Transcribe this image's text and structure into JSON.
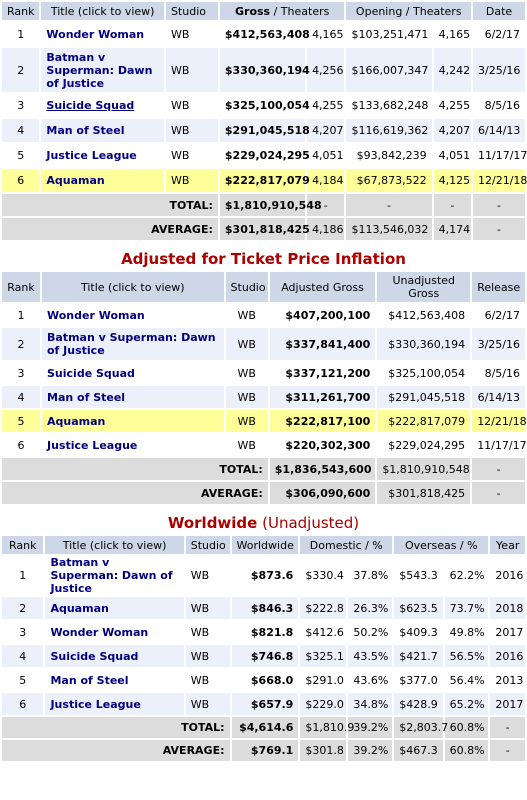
{
  "table1": {
    "headers": {
      "rank": "Rank",
      "title": "Title (click to view)",
      "studio": "Studio",
      "gross_a": "Gross",
      "gross_b": " / Theaters",
      "opening_a": "Opening",
      "opening_b": " / Theaters",
      "date": "Date"
    },
    "rows": [
      {
        "rank": "1",
        "title": "Wonder Woman",
        "studio": "WB",
        "gross": "$412,563,408",
        "theaters": "4,165",
        "opening": "$103,251,471",
        "op_theaters": "4,165",
        "date": "6/2/17"
      },
      {
        "rank": "2",
        "title": "Batman v Superman: Dawn of Justice",
        "studio": "WB",
        "gross": "$330,360,194",
        "theaters": "4,256",
        "opening": "$166,007,347",
        "op_theaters": "4,242",
        "date": "3/25/16"
      },
      {
        "rank": "3",
        "title": "Suicide Squad",
        "studio": "WB",
        "gross": "$325,100,054",
        "theaters": "4,255",
        "opening": "$133,682,248",
        "op_theaters": "4,255",
        "date": "8/5/16"
      },
      {
        "rank": "4",
        "title": "Man of Steel",
        "studio": "WB",
        "gross": "$291,045,518",
        "theaters": "4,207",
        "opening": "$116,619,362",
        "op_theaters": "4,207",
        "date": "6/14/13"
      },
      {
        "rank": "5",
        "title": "Justice League",
        "studio": "WB",
        "gross": "$229,024,295",
        "theaters": "4,051",
        "opening": "$93,842,239",
        "op_theaters": "4,051",
        "date": "11/17/17"
      },
      {
        "rank": "6",
        "title": "Aquaman",
        "studio": "WB",
        "gross": "$222,817,079",
        "theaters": "4,184",
        "opening": "$67,873,522",
        "op_theaters": "4,125",
        "date": "12/21/18"
      }
    ],
    "total": {
      "label": "TOTAL:",
      "gross": "$1,810,910,548",
      "theaters": "-",
      "opening": "-",
      "op_theaters": "-",
      "date": "-"
    },
    "average": {
      "label": "AVERAGE:",
      "gross": "$301,818,425",
      "theaters": "4,186",
      "opening": "$113,546,032",
      "op_theaters": "4,174",
      "date": "-"
    }
  },
  "table2": {
    "title": "Adjusted for Ticket Price Inflation",
    "headers": {
      "rank": "Rank",
      "title": "Title (click to view)",
      "studio": "Studio",
      "adjusted": "Adjusted Gross",
      "unadjusted": "Unadjusted Gross",
      "release": "Release"
    },
    "rows": [
      {
        "rank": "1",
        "title": "Wonder Woman",
        "studio": "WB",
        "adjusted": "$407,200,100",
        "unadjusted": "$412,563,408",
        "release": "6/2/17"
      },
      {
        "rank": "2",
        "title": "Batman v Superman: Dawn of Justice",
        "studio": "WB",
        "adjusted": "$337,841,400",
        "unadjusted": "$330,360,194",
        "release": "3/25/16"
      },
      {
        "rank": "3",
        "title": "Suicide Squad",
        "studio": "WB",
        "adjusted": "$337,121,200",
        "unadjusted": "$325,100,054",
        "release": "8/5/16"
      },
      {
        "rank": "4",
        "title": "Man of Steel",
        "studio": "WB",
        "adjusted": "$311,261,700",
        "unadjusted": "$291,045,518",
        "release": "6/14/13"
      },
      {
        "rank": "5",
        "title": "Aquaman",
        "studio": "WB",
        "adjusted": "$222,817,100",
        "unadjusted": "$222,817,079",
        "release": "12/21/18"
      },
      {
        "rank": "6",
        "title": "Justice League",
        "studio": "WB",
        "adjusted": "$220,302,300",
        "unadjusted": "$229,024,295",
        "release": "11/17/17"
      }
    ],
    "total": {
      "label": "TOTAL:",
      "adjusted": "$1,836,543,600",
      "unadjusted": "$1,810,910,548",
      "release": "-"
    },
    "average": {
      "label": "AVERAGE:",
      "adjusted": "$306,090,600",
      "unadjusted": "$301,818,425",
      "release": "-"
    }
  },
  "table3": {
    "title": "Worldwide",
    "subtitle": " (Unadjusted)",
    "headers": {
      "rank": "Rank",
      "title": "Title (click to view)",
      "studio": "Studio",
      "worldwide": "Worldwide",
      "domestic": "Domestic / %",
      "overseas": "Overseas / %",
      "year": "Year"
    },
    "rows": [
      {
        "rank": "1",
        "title": "Batman v Superman: Dawn of Justice",
        "studio": "WB",
        "worldwide": "$873.6",
        "domestic": "$330.4",
        "dom_pct": "37.8%",
        "overseas": "$543.3",
        "ovs_pct": "62.2%",
        "year": "2016"
      },
      {
        "rank": "2",
        "title": "Aquaman",
        "studio": "WB",
        "worldwide": "$846.3",
        "domestic": "$222.8",
        "dom_pct": "26.3%",
        "overseas": "$623.5",
        "ovs_pct": "73.7%",
        "year": "2018"
      },
      {
        "rank": "3",
        "title": "Wonder Woman",
        "studio": "WB",
        "worldwide": "$821.8",
        "domestic": "$412.6",
        "dom_pct": "50.2%",
        "overseas": "$409.3",
        "ovs_pct": "49.8%",
        "year": "2017"
      },
      {
        "rank": "4",
        "title": "Suicide Squad",
        "studio": "WB",
        "worldwide": "$746.8",
        "domestic": "$325.1",
        "dom_pct": "43.5%",
        "overseas": "$421.7",
        "ovs_pct": "56.5%",
        "year": "2016"
      },
      {
        "rank": "5",
        "title": "Man of Steel",
        "studio": "WB",
        "worldwide": "$668.0",
        "domestic": "$291.0",
        "dom_pct": "43.6%",
        "overseas": "$377.0",
        "ovs_pct": "56.4%",
        "year": "2013"
      },
      {
        "rank": "6",
        "title": "Justice League",
        "studio": "WB",
        "worldwide": "$657.9",
        "domestic": "$229.0",
        "dom_pct": "34.8%",
        "overseas": "$428.9",
        "ovs_pct": "65.2%",
        "year": "2017"
      }
    ],
    "total": {
      "label": "TOTAL:",
      "worldwide": "$4,614.6",
      "domestic": "$1,810.9",
      "dom_pct": "39.2%",
      "overseas": "$2,803.7",
      "ovs_pct": "60.8%",
      "year": "-"
    },
    "average": {
      "label": "AVERAGE:",
      "worldwide": "$769.1",
      "domestic": "$301.8",
      "dom_pct": "39.2%",
      "overseas": "$467.3",
      "ovs_pct": "60.8%",
      "year": "-"
    }
  },
  "colors": {
    "header_bg": "#ced7e8",
    "row_alt": "#ecf0fa",
    "highlight": "#ffff99",
    "summary_bg": "#dcdcdc",
    "title_link": "#00007f",
    "section_title": "#aa0000"
  }
}
